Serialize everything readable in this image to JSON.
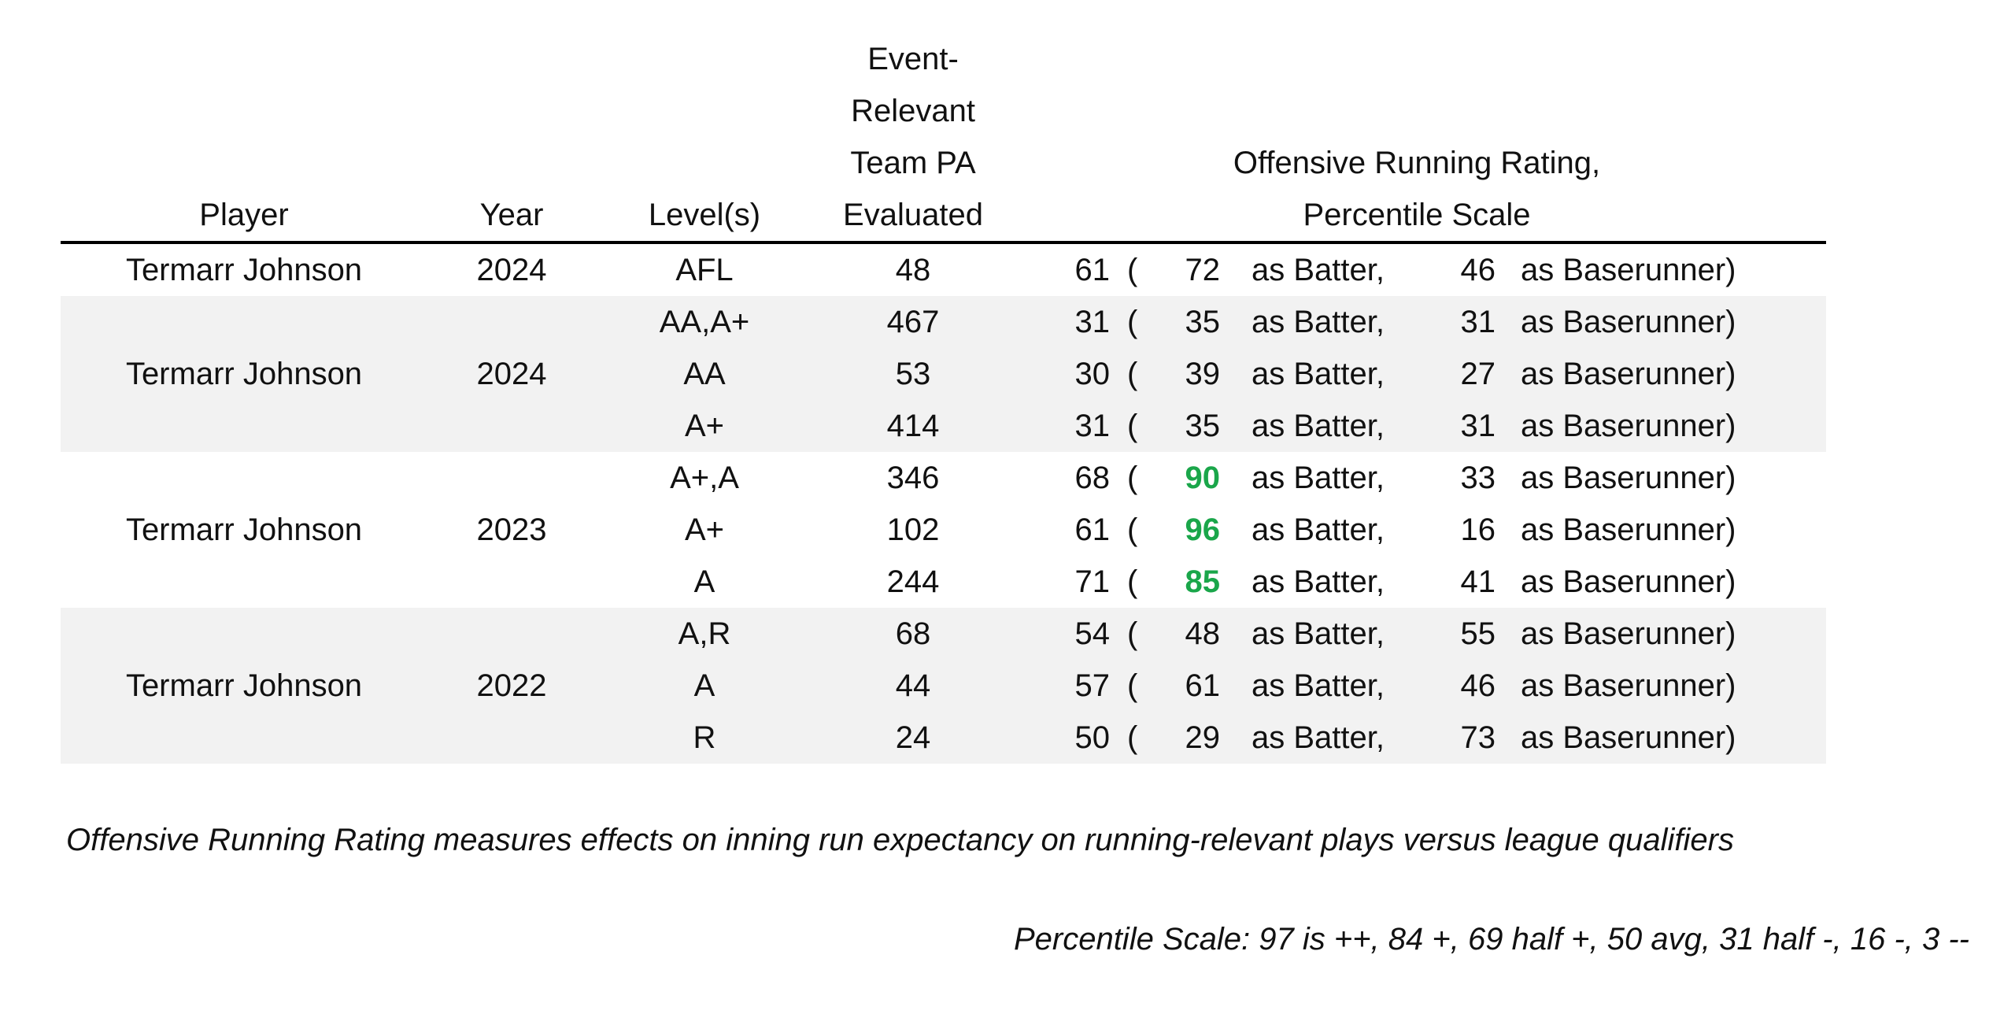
{
  "headers": {
    "player": "Player",
    "year": "Year",
    "levels": "Level(s)",
    "pa": [
      "Event-",
      "Relevant",
      "Team PA",
      "Evaluated"
    ],
    "rating": [
      "Offensive Running Rating,",
      "Percentile Scale"
    ]
  },
  "groups": [
    {
      "player": "Termarr Johnson",
      "year": "2024",
      "shaded": false,
      "rows": [
        {
          "level": "AFL",
          "pa": "48",
          "rating": "61",
          "paren": "(",
          "batter": "72",
          "batter_label": "as Batter,",
          "runner": "46",
          "runner_label": "as Baserunner)",
          "highlight": false
        }
      ]
    },
    {
      "player": "Termarr Johnson",
      "year": "2024",
      "shaded": true,
      "rows": [
        {
          "level": "AA,A+",
          "pa": "467",
          "rating": "31",
          "paren": "(",
          "batter": "35",
          "batter_label": "as Batter,",
          "runner": "31",
          "runner_label": "as Baserunner)",
          "highlight": false
        },
        {
          "level": "AA",
          "pa": "53",
          "rating": "30",
          "paren": "(",
          "batter": "39",
          "batter_label": "as Batter,",
          "runner": "27",
          "runner_label": "as Baserunner)",
          "highlight": false
        },
        {
          "level": "A+",
          "pa": "414",
          "rating": "31",
          "paren": "(",
          "batter": "35",
          "batter_label": "as Batter,",
          "runner": "31",
          "runner_label": "as Baserunner)",
          "highlight": false
        }
      ]
    },
    {
      "player": "Termarr Johnson",
      "year": "2023",
      "shaded": false,
      "rows": [
        {
          "level": "A+,A",
          "pa": "346",
          "rating": "68",
          "paren": "(",
          "batter": "90",
          "batter_label": "as Batter,",
          "runner": "33",
          "runner_label": "as Baserunner)",
          "highlight": true
        },
        {
          "level": "A+",
          "pa": "102",
          "rating": "61",
          "paren": "(",
          "batter": "96",
          "batter_label": "as Batter,",
          "runner": "16",
          "runner_label": "as Baserunner)",
          "highlight": true
        },
        {
          "level": "A",
          "pa": "244",
          "rating": "71",
          "paren": "(",
          "batter": "85",
          "batter_label": "as Batter,",
          "runner": "41",
          "runner_label": "as Baserunner)",
          "highlight": true
        }
      ]
    },
    {
      "player": "Termarr Johnson",
      "year": "2022",
      "shaded": true,
      "rows": [
        {
          "level": "A,R",
          "pa": "68",
          "rating": "54",
          "paren": "(",
          "batter": "48",
          "batter_label": "as Batter,",
          "runner": "55",
          "runner_label": "as Baserunner)",
          "highlight": false
        },
        {
          "level": "A",
          "pa": "44",
          "rating": "57",
          "paren": "(",
          "batter": "61",
          "batter_label": "as Batter,",
          "runner": "46",
          "runner_label": "as Baserunner)",
          "highlight": false
        },
        {
          "level": "R",
          "pa": "24",
          "rating": "50",
          "paren": "(",
          "batter": "29",
          "batter_label": "as Batter,",
          "runner": "73",
          "runner_label": "as Baserunner)",
          "highlight": false
        }
      ]
    }
  ],
  "colors": {
    "highlight": "#1aa64a",
    "band": "#f2f2f2"
  },
  "footnote": "Offensive Running Rating measures effects on inning run expectancy on running-relevant plays versus league qualifiers",
  "scale_note": "Percentile Scale: 97 is ++, 84 +, 69 half +, 50 avg, 31 half -, 16 -, 3 --"
}
